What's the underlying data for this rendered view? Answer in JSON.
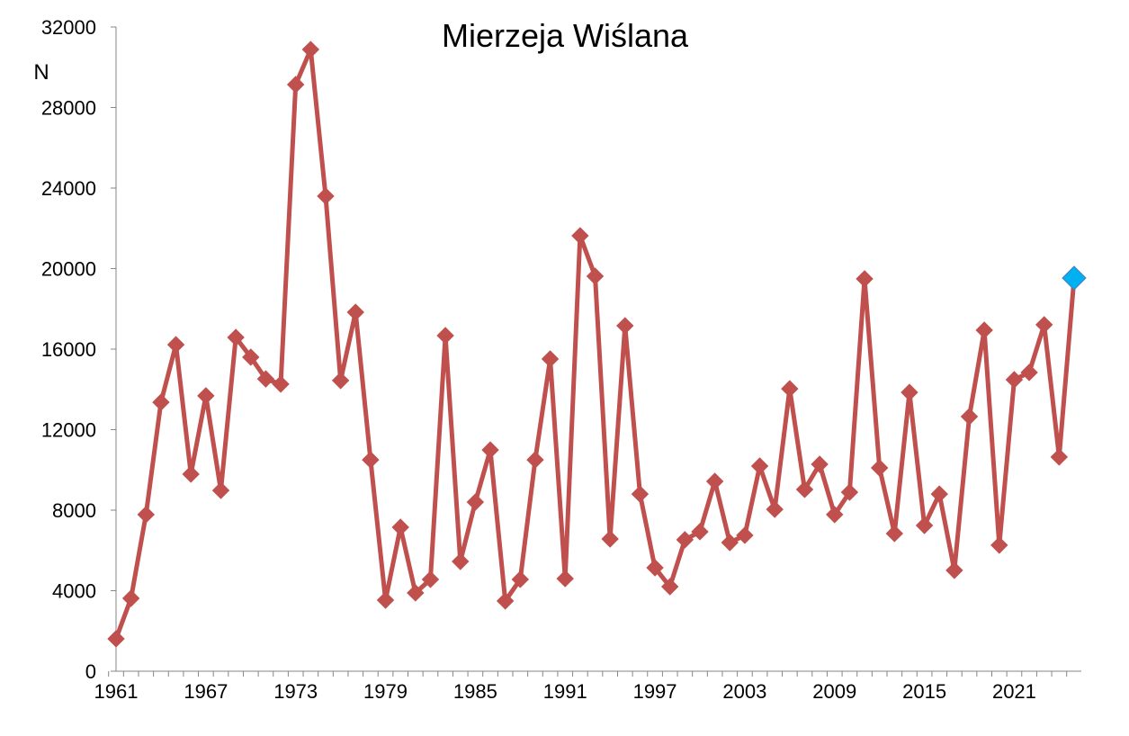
{
  "chart_data": {
    "type": "line",
    "title": "Mierzeja Wiślana",
    "xlabel": "",
    "ylabel": "N",
    "ylim": [
      0,
      32000
    ],
    "xlim": [
      1961,
      2025
    ],
    "yticks": [
      0,
      4000,
      8000,
      12000,
      16000,
      20000,
      24000,
      28000,
      32000
    ],
    "xticks": [
      1961,
      1967,
      1973,
      1979,
      1985,
      1991,
      1997,
      2003,
      2009,
      2015,
      2021
    ],
    "grid": false,
    "legend": "none",
    "line_color": "#C0504D",
    "highlight_color": "#00B0F0",
    "highlight_year": 2025,
    "x": [
      1961,
      1962,
      1963,
      1964,
      1965,
      1966,
      1967,
      1968,
      1969,
      1970,
      1971,
      1972,
      1973,
      1974,
      1975,
      1976,
      1977,
      1978,
      1979,
      1980,
      1981,
      1982,
      1983,
      1984,
      1985,
      1986,
      1987,
      1988,
      1989,
      1990,
      1991,
      1992,
      1993,
      1994,
      1995,
      1996,
      1997,
      1998,
      1999,
      2000,
      2001,
      2002,
      2003,
      2004,
      2005,
      2006,
      2007,
      2008,
      2009,
      2010,
      2011,
      2012,
      2013,
      2014,
      2015,
      2016,
      2017,
      2018,
      2019,
      2020,
      2021,
      2022,
      2023,
      2024,
      2025
    ],
    "values": [
      1610,
      3620,
      7780,
      13360,
      16220,
      9790,
      13680,
      8980,
      16580,
      15600,
      14520,
      14260,
      29140,
      30880,
      23600,
      14440,
      17830,
      10500,
      3530,
      7150,
      3890,
      4560,
      16670,
      5450,
      8400,
      10990,
      3490,
      4560,
      10500,
      15510,
      4600,
      21630,
      19620,
      6570,
      17160,
      8800,
      5140,
      4200,
      6530,
      6930,
      9430,
      6390,
      6750,
      10190,
      8040,
      14030,
      9030,
      10280,
      7780,
      8890,
      19490,
      10100,
      6840,
      13850,
      7240,
      8800,
      5010,
      12650,
      16940,
      6260,
      14480,
      14840,
      17210,
      10640,
      19530
    ]
  }
}
